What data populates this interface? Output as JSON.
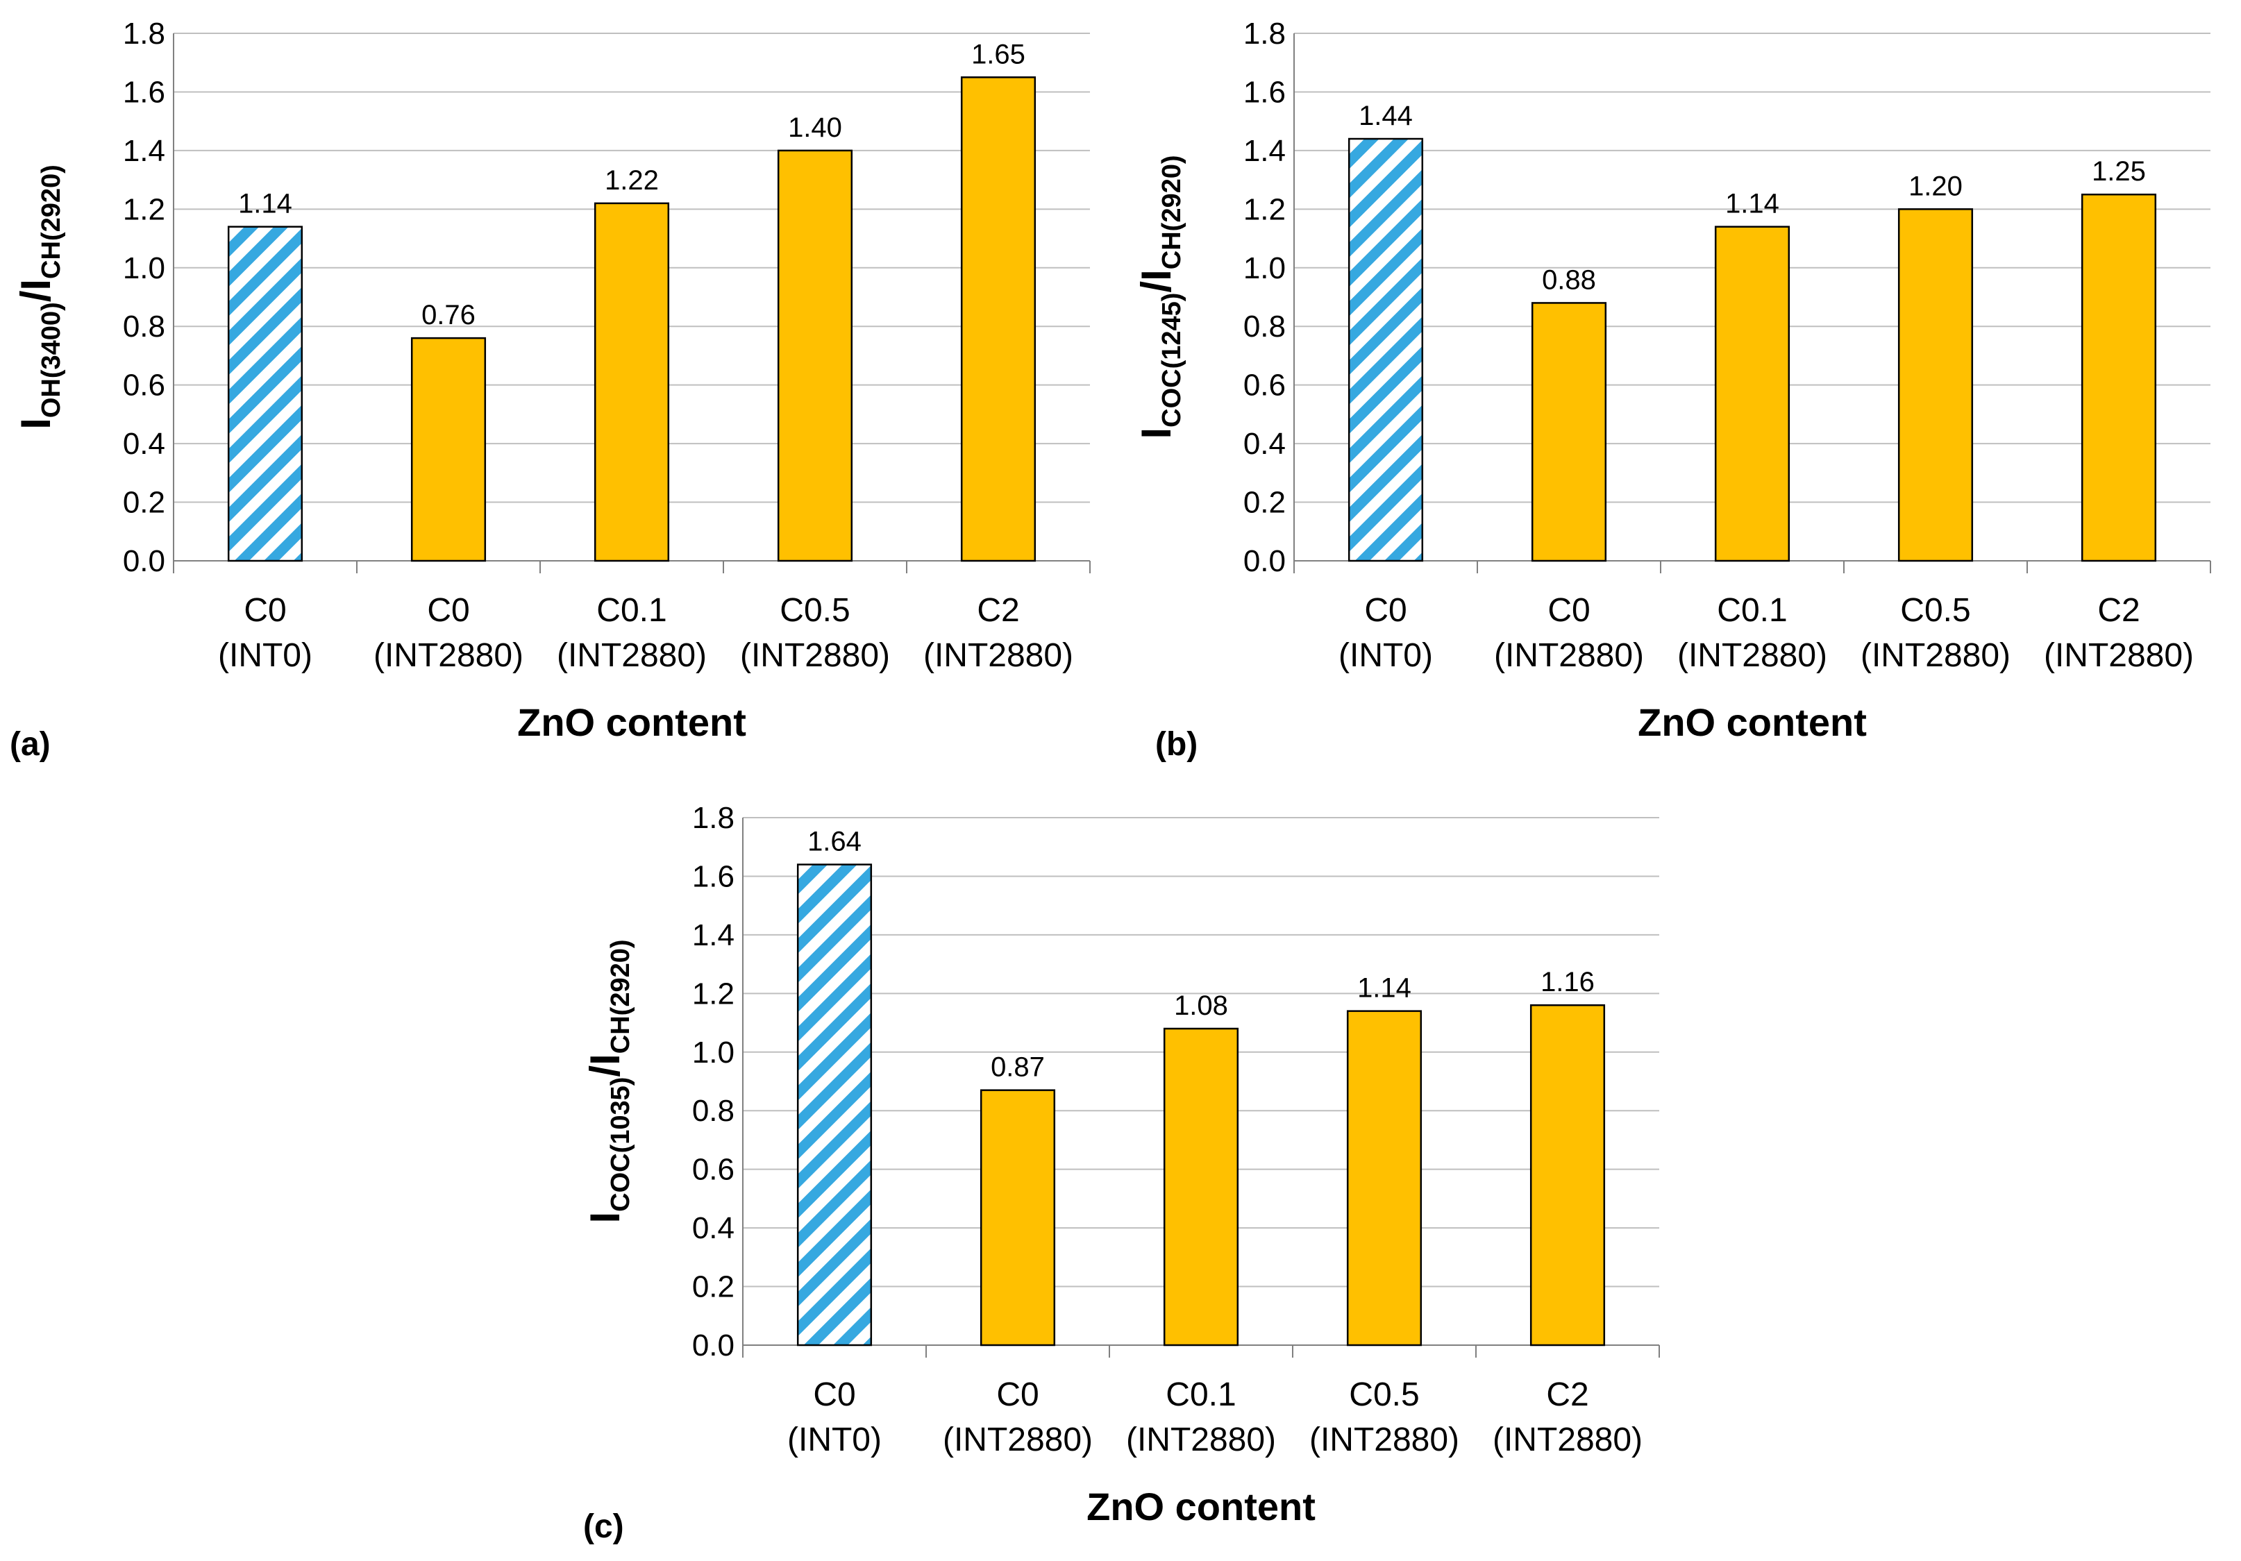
{
  "colors": {
    "bar_fill": "#FFC000",
    "hatch_blue": "#36A8E0",
    "gridline": "#BFBFBF",
    "axis": "#808080"
  },
  "chart_data": [
    {
      "type": "bar",
      "panel": "(a)",
      "ylabel": {
        "I1": "I",
        "sub1": "OH(3400)",
        "slash": "/",
        "I2": "I",
        "sub2": "CH(2920)"
      },
      "xlabel": "ZnO content",
      "ylim": [
        0,
        1.8
      ],
      "yticks": [
        "0.0",
        "0.2",
        "0.4",
        "0.6",
        "0.8",
        "1.0",
        "1.2",
        "1.4",
        "1.6",
        "1.8"
      ],
      "grid": true,
      "categories": [
        {
          "line1": "C0",
          "line2": "(INT0)"
        },
        {
          "line1": "C0",
          "line2": "(INT2880)"
        },
        {
          "line1": "C0.1",
          "line2": "(INT2880)"
        },
        {
          "line1": "C0.5",
          "line2": "(INT2880)"
        },
        {
          "line1": "C2",
          "line2": "(INT2880)"
        }
      ],
      "values": [
        1.14,
        0.76,
        1.22,
        1.4,
        1.65
      ],
      "value_labels": [
        "1.14",
        "0.76",
        "1.22",
        "1.40",
        "1.65"
      ],
      "hatched": [
        true,
        false,
        false,
        false,
        false
      ]
    },
    {
      "type": "bar",
      "panel": "(b)",
      "ylabel": {
        "I1": "I",
        "sub1": "COC(1245)",
        "slash": "/",
        "I2": "I",
        "sub2": "CH(2920)"
      },
      "xlabel": "ZnO content",
      "ylim": [
        0,
        1.8
      ],
      "yticks": [
        "0.0",
        "0.2",
        "0.4",
        "0.6",
        "0.8",
        "1.0",
        "1.2",
        "1.4",
        "1.6",
        "1.8"
      ],
      "grid": true,
      "categories": [
        {
          "line1": "C0",
          "line2": "(INT0)"
        },
        {
          "line1": "C0",
          "line2": "(INT2880)"
        },
        {
          "line1": "C0.1",
          "line2": "(INT2880)"
        },
        {
          "line1": "C0.5",
          "line2": "(INT2880)"
        },
        {
          "line1": "C2",
          "line2": "(INT2880)"
        }
      ],
      "values": [
        1.44,
        0.88,
        1.14,
        1.2,
        1.25
      ],
      "value_labels": [
        "1.44",
        "0.88",
        "1.14",
        "1.20",
        "1.25"
      ],
      "hatched": [
        true,
        false,
        false,
        false,
        false
      ]
    },
    {
      "type": "bar",
      "panel": "(c)",
      "ylabel": {
        "I1": "I",
        "sub1": "COC(1035)",
        "slash": "/",
        "I2": "I",
        "sub2": "CH(2920)"
      },
      "xlabel": "ZnO content",
      "ylim": [
        0,
        1.8
      ],
      "yticks": [
        "0.0",
        "0.2",
        "0.4",
        "0.6",
        "0.8",
        "1.0",
        "1.2",
        "1.4",
        "1.6",
        "1.8"
      ],
      "grid": true,
      "categories": [
        {
          "line1": "C0",
          "line2": "(INT0)"
        },
        {
          "line1": "C0",
          "line2": "(INT2880)"
        },
        {
          "line1": "C0.1",
          "line2": "(INT2880)"
        },
        {
          "line1": "C0.5",
          "line2": "(INT2880)"
        },
        {
          "line1": "C2",
          "line2": "(INT2880)"
        }
      ],
      "values": [
        1.64,
        0.87,
        1.08,
        1.14,
        1.16
      ],
      "value_labels": [
        "1.64",
        "0.87",
        "1.08",
        "1.14",
        "1.16"
      ],
      "hatched": [
        true,
        false,
        false,
        false,
        false
      ]
    }
  ]
}
